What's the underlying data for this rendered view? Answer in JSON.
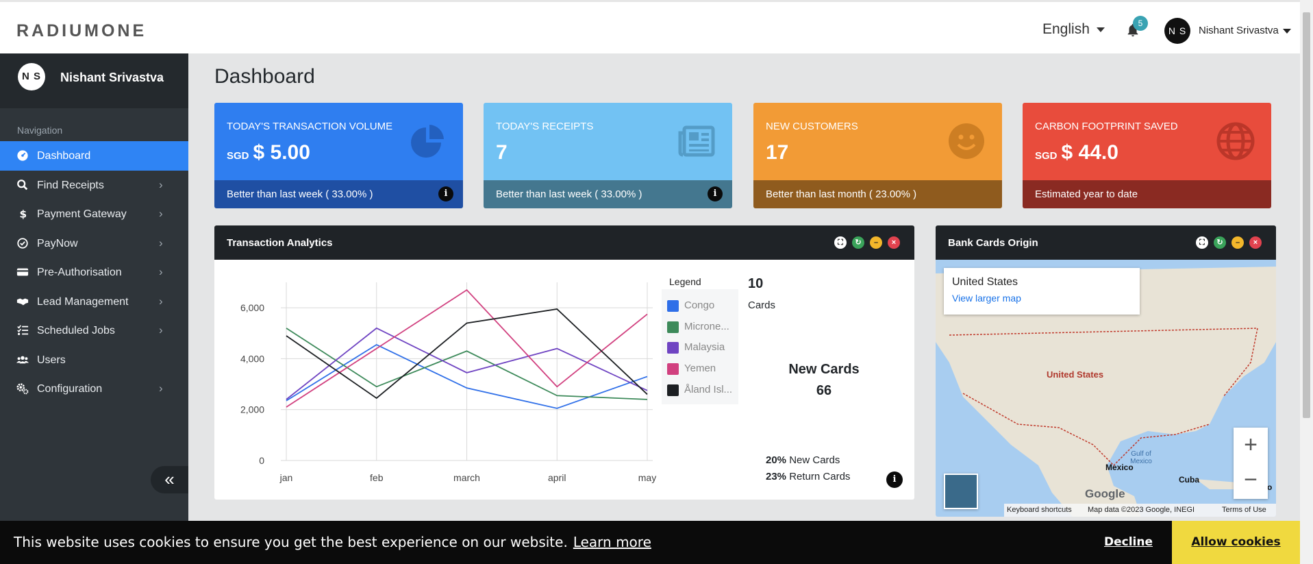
{
  "header": {
    "logo": "RADIUMONE",
    "language": "English",
    "notifications_count": "5",
    "avatar_initials": "N S",
    "user_name": "Nishant Srivastva"
  },
  "sidebar": {
    "avatar_initials": "N S",
    "user_name": "Nishant Srivastva",
    "section_title": "Navigation",
    "items": [
      {
        "label": "Dashboard",
        "icon": "dashboard-icon",
        "active": true
      },
      {
        "label": "Find Receipts",
        "icon": "search-icon"
      },
      {
        "label": "Payment Gateway",
        "icon": "dollar-icon"
      },
      {
        "label": "PayNow",
        "icon": "check-circle-icon"
      },
      {
        "label": "Pre-Authorisation",
        "icon": "credit-card-icon"
      },
      {
        "label": "Lead Management",
        "icon": "handshake-icon"
      },
      {
        "label": "Scheduled Jobs",
        "icon": "list-icon"
      },
      {
        "label": "Users",
        "icon": "users-icon"
      },
      {
        "label": "Configuration",
        "icon": "gears-icon"
      }
    ],
    "collapse_label": "«"
  },
  "main": {
    "title": "Dashboard",
    "stats": [
      {
        "label": "Today's Transaction Volume",
        "currency": "SGD",
        "value": "$ 5.00",
        "footer": "Better than last week ( 33.00% )",
        "color": "#2f7ef0",
        "foot_color": "#1f4fa3",
        "icon": "pie-chart-icon"
      },
      {
        "label": "Today's Receipts",
        "currency": "",
        "value": "7",
        "footer": "Better than last week ( 33.00% )",
        "color": "#72c2f3",
        "foot_color": "#44778f",
        "icon": "newspaper-icon"
      },
      {
        "label": "New Customers",
        "currency": "",
        "value": "17",
        "footer": "Better than last month ( 23.00% )",
        "color": "#f29b36",
        "foot_color": "#8f5b1e",
        "icon": "smile-icon"
      },
      {
        "label": "Carbon Footprint Saved",
        "currency": "SGD",
        "value": "$ 44.0",
        "footer": "Estimated year to date",
        "color": "#e84c3c",
        "foot_color": "#8a2a22",
        "icon": "globe-icon"
      }
    ],
    "analytics": {
      "title": "Transaction Analytics",
      "legend_title": "Legend",
      "cards_count": "10",
      "cards_label": "Cards",
      "new_cards_title": "New Cards",
      "new_cards_value": "66",
      "pct_new": "20%",
      "pct_new_label": "New Cards",
      "pct_return": "23%",
      "pct_return_label": "Return Cards"
    },
    "bank_cards": {
      "title": "Bank Cards Origin",
      "map_place": "United States",
      "map_link": "View larger map",
      "map_country_label": "United States",
      "map_labels": [
        "Mexico",
        "Cuba",
        "Gulf of Mexico",
        "Pu...co"
      ],
      "map_footer_shortcuts": "Keyboard shortcuts",
      "map_footer_data": "Map data ©2023 Google, INEGI",
      "map_footer_terms": "Terms of Use",
      "google_logo": "Google"
    }
  },
  "chart_data": {
    "type": "line",
    "categories": [
      "jan",
      "feb",
      "march",
      "april",
      "may"
    ],
    "ylim": [
      0,
      7000
    ],
    "yticks": [
      "0",
      "2,000",
      "4,000",
      "6,000"
    ],
    "series": [
      {
        "name": "Congo",
        "color": "#2f6fe8",
        "values": [
          2350,
          4550,
          2850,
          2050,
          3300
        ]
      },
      {
        "name": "Microne...",
        "color": "#3d8a5a",
        "values": [
          5200,
          2900,
          4300,
          2550,
          2400
        ]
      },
      {
        "name": "Malaysia",
        "color": "#6f44c2",
        "values": [
          2400,
          5200,
          3450,
          4400,
          2750
        ]
      },
      {
        "name": "Yemen",
        "color": "#d1407f",
        "values": [
          2100,
          4400,
          6700,
          2900,
          5750
        ]
      },
      {
        "name": "Åland Isl...",
        "color": "#1c1f22",
        "values": [
          4900,
          2450,
          5400,
          5950,
          2600
        ]
      }
    ]
  },
  "cookie": {
    "text": "This website uses cookies to ensure you get the best experience on our website.",
    "learn_more": "Learn more",
    "decline": "Decline",
    "allow": "Allow cookies"
  }
}
